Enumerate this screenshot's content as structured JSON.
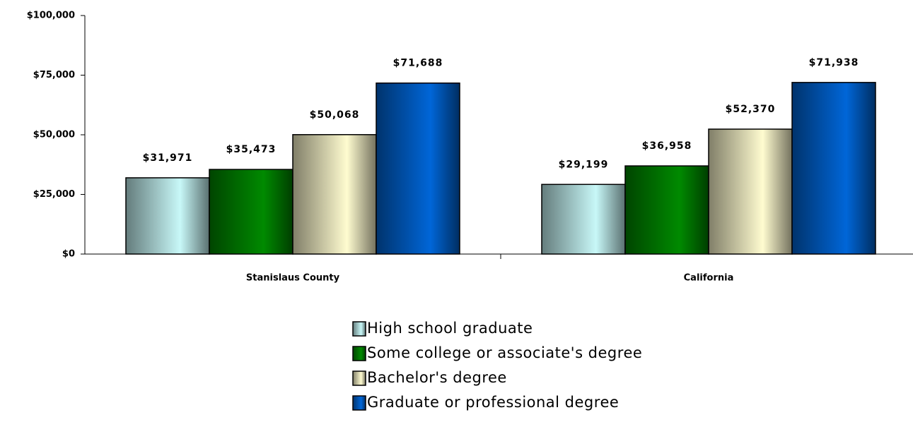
{
  "chart_data": {
    "type": "bar",
    "categories": [
      "Stanislaus County",
      "California"
    ],
    "series": [
      {
        "name": "High school graduate",
        "color": "#c8f8f8",
        "values": [
          31971,
          29199
        ],
        "value_labels": [
          "$31,971",
          "$29,199"
        ]
      },
      {
        "name": "Some college or associate's degree",
        "color": "#008a00",
        "values": [
          35473,
          36958
        ],
        "value_labels": [
          "$35,473",
          "$36,958"
        ]
      },
      {
        "name": "Bachelor's degree",
        "color": "#fffcd0",
        "values": [
          50068,
          52370
        ],
        "value_labels": [
          "$50,068",
          "$52,370"
        ]
      },
      {
        "name": "Graduate or professional degree",
        "color": "#0066d8",
        "values": [
          71688,
          71938
        ],
        "value_labels": [
          "$71,688",
          "$71,938"
        ]
      }
    ],
    "ylim": [
      0,
      100000
    ],
    "yticks": [
      {
        "value": 0,
        "label": "$0"
      },
      {
        "value": 25000,
        "label": "$25,000"
      },
      {
        "value": 50000,
        "label": "$50,000"
      },
      {
        "value": 75000,
        "label": "$75,000"
      },
      {
        "value": 100000,
        "label": "$100,000"
      }
    ],
    "legend": "bottom"
  }
}
